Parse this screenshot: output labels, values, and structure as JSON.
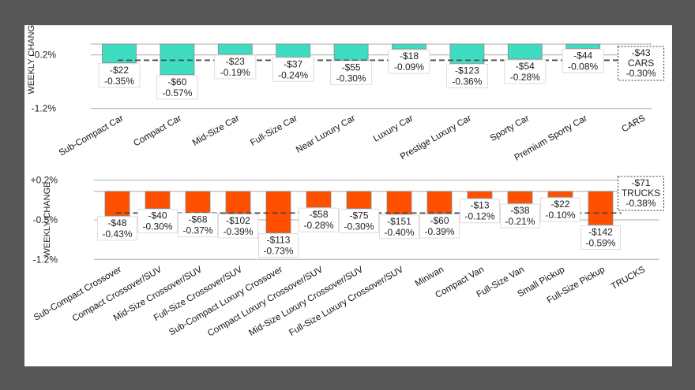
{
  "colors": {
    "cars": "#3EDCC0",
    "trucks": "#FF5000",
    "frame": "#575757",
    "grid": "#BBBBBB",
    "avg": "#444444"
  },
  "chart_data": [
    {
      "type": "bar",
      "title": "",
      "xlabel": "",
      "ylabel": "WEEKLY CHANGE",
      "ylim": [
        -1.2,
        0.0
      ],
      "yticks": [
        {
          "value": -0.2,
          "label": "-0.2%"
        },
        {
          "value": -1.2,
          "label": "-1.2%"
        }
      ],
      "grid": true,
      "categories": [
        "Sub-Compact Car",
        "Compact Car",
        "Mid-Size Car",
        "Full-Size Car",
        "Near Luxury Car",
        "Luxury Car",
        "Prestige Luxury Car",
        "Sporty Car",
        "Premium Sporty Car"
      ],
      "values": [
        -0.35,
        -0.57,
        -0.19,
        -0.24,
        -0.3,
        -0.09,
        -0.36,
        -0.28,
        -0.08
      ],
      "dollar_labels": [
        "-$22",
        "-$60",
        "-$23",
        "-$37",
        "-$55",
        "-$18",
        "-$123",
        "-$54",
        "-$44"
      ],
      "pct_labels": [
        "-0.35%",
        "-0.57%",
        "-0.19%",
        "-0.24%",
        "-0.30%",
        "-0.09%",
        "-0.36%",
        "-0.28%",
        "-0.08%"
      ],
      "total": {
        "category": "CARS",
        "dollar": "-$43",
        "name": "CARS",
        "pct": "-0.30%",
        "value": -0.3
      },
      "bar_color_key": "cars"
    },
    {
      "type": "bar",
      "title": "",
      "xlabel": "",
      "ylabel": "WEEKLY CHANGE",
      "ylim": [
        -1.2,
        0.2
      ],
      "yticks": [
        {
          "value": 0.2,
          "label": "+0.2%"
        },
        {
          "value": -0.5,
          "label": "-0.5%"
        },
        {
          "value": -1.2,
          "label": "-1.2%"
        }
      ],
      "grid": true,
      "categories": [
        "Sub-Compact Crossover",
        "Compact Crossover/SUV",
        "Mid-Size Crossover/SUV",
        "Full-Size Crossover/SUV",
        "Sub-Compact Luxury Crossover",
        "Compact Luxury Crossover/SUV",
        "Mid-Size Luxury Crossover/SUV",
        "Full-Size Luxury Crossover/SUV",
        "Minivan",
        "Compact Van",
        "Full-Size Van",
        "Small Pickup",
        "Full-Size Pickup"
      ],
      "values": [
        -0.43,
        -0.3,
        -0.37,
        -0.39,
        -0.73,
        -0.28,
        -0.3,
        -0.4,
        -0.39,
        -0.12,
        -0.21,
        -0.1,
        -0.59
      ],
      "dollar_labels": [
        "-$48",
        "-$40",
        "-$68",
        "-$102",
        "-$113",
        "-$58",
        "-$75",
        "-$151",
        "-$60",
        "-$13",
        "-$38",
        "-$22",
        "-$142"
      ],
      "pct_labels": [
        "-0.43%",
        "-0.30%",
        "-0.37%",
        "-0.39%",
        "-0.73%",
        "-0.28%",
        "-0.30%",
        "-0.40%",
        "-0.39%",
        "-0.12%",
        "-0.21%",
        "-0.10%",
        "-0.59%"
      ],
      "total": {
        "category": "TRUCKS",
        "dollar": "-$71",
        "name": "TRUCKS",
        "pct": "-0.38%",
        "value": -0.38
      },
      "bar_color_key": "trucks"
    }
  ]
}
